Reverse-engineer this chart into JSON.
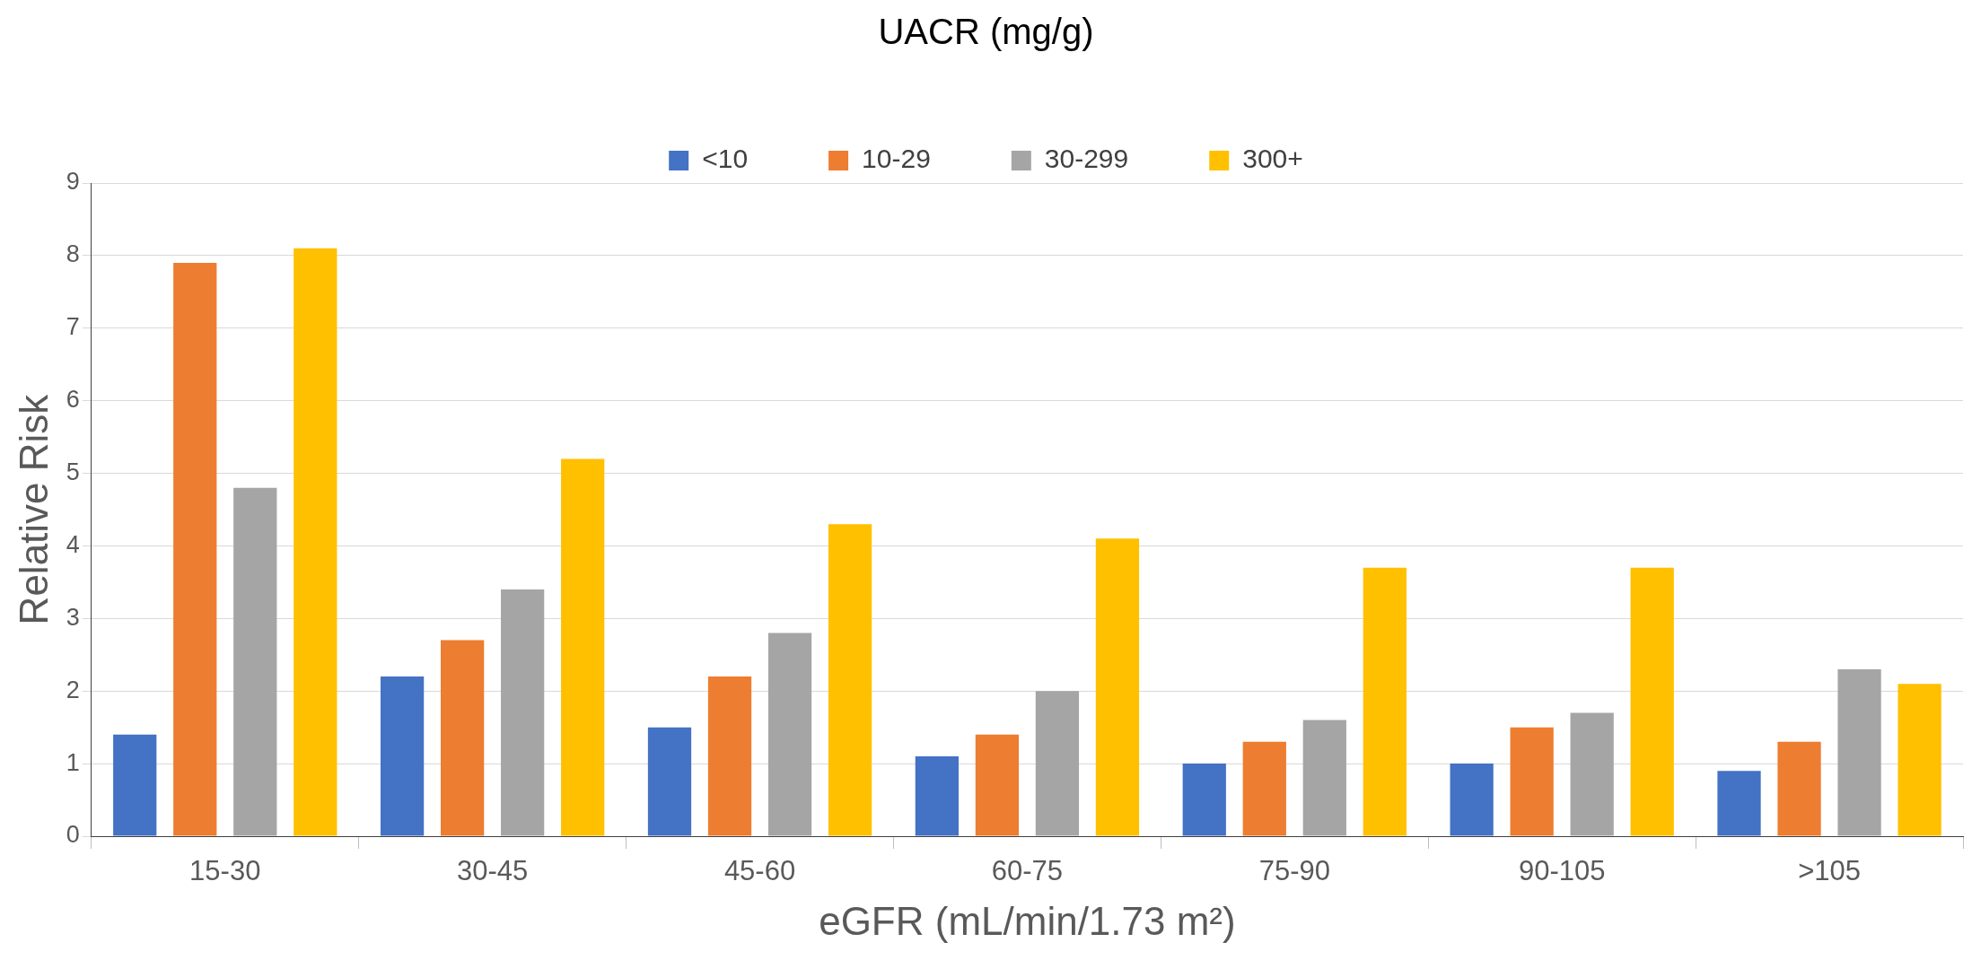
{
  "chart_data": {
    "type": "bar",
    "xlabel": "eGFR (mL/min/1.73 m²)",
    "ylabel": "Relative Risk",
    "legend_title": "UACR (mg/g)",
    "categories": [
      "15-30",
      "30-45",
      "45-60",
      "60-75",
      "75-90",
      "90-105",
      ">105"
    ],
    "series": [
      {
        "name": "<10",
        "color": "#4472c4",
        "values": [
          1.4,
          2.2,
          1.5,
          1.1,
          1.0,
          1.0,
          0.9
        ]
      },
      {
        "name": "10-29",
        "color": "#ed7d31",
        "values": [
          7.9,
          2.7,
          2.2,
          1.4,
          1.3,
          1.5,
          1.3
        ]
      },
      {
        "name": "30-299",
        "color": "#a5a5a5",
        "values": [
          4.8,
          3.4,
          2.8,
          2.0,
          1.6,
          1.7,
          2.3
        ]
      },
      {
        "name": "300+",
        "color": "#ffc000",
        "values": [
          8.1,
          5.2,
          4.3,
          4.1,
          3.7,
          3.7,
          2.1
        ]
      }
    ],
    "ylim": [
      0,
      9
    ],
    "yticks": [
      0,
      1,
      2,
      3,
      4,
      5,
      6,
      7,
      8,
      9
    ],
    "grid": "y",
    "legend": "top"
  }
}
